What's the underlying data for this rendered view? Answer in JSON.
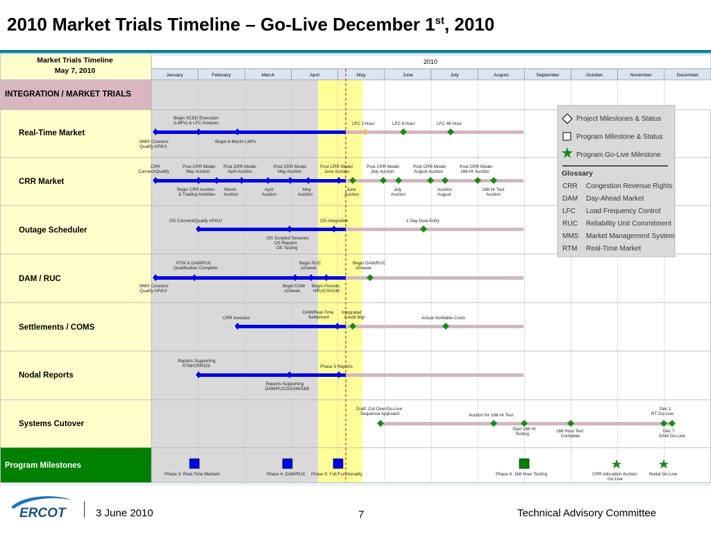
{
  "title": {
    "main": "2010 Market Trials Timeline – Go-Live December 1",
    "sup": "st",
    "tail": ", 2010"
  },
  "header": {
    "name_line1": "Market Trials Timeline",
    "name_line2": "May 7, 2010",
    "year": "2010"
  },
  "months": [
    "January",
    "February",
    "March",
    "April",
    "May",
    "June",
    "July",
    "August",
    "September",
    "October",
    "November",
    "December"
  ],
  "sections": {
    "integration": "INTEGRATION / MARKET TRIALS",
    "milestones": "Program Milestones"
  },
  "rows": [
    {
      "label": "Real-Time Market",
      "annotations": [
        "Begin SCED Execution",
        "(LMPs) & LFC Analysis",
        "MMS Connect/",
        "Qualify API/UI",
        "Begin 6-Month LMPs",
        "LFC 2 Hour",
        "LFC 8 Hour",
        "LFC 48 Hour"
      ]
    },
    {
      "label": "CRR Market",
      "annotations": [
        "CRR",
        "Connect/Qualify",
        "Post CRR Model",
        "May Auction",
        "Post CRR Model",
        "April Auction",
        "Post CRR Model",
        "May Auction",
        "Post CRR Model",
        "June Auction",
        "Post CRR Model",
        "July Auction",
        "Post CRR Model",
        "August Auction",
        "Post CRR Model",
        "168-Hr Auction",
        "Begin CRR Auction",
        "& Trading Activities",
        "March",
        "Auction",
        "April",
        "Auction",
        "May",
        "Auction",
        "June",
        "Auction",
        "July",
        "Auction",
        "Auction",
        "August",
        "168-Hr Test",
        "Auction"
      ]
    },
    {
      "label": "Outage Scheduler",
      "annotations": [
        "OS Connect/Qualify API/UI",
        "OS Integration",
        "1 Day Dual-Entry",
        "OS Scripted Senarios",
        "OS Reports",
        "OE Testing"
      ]
    },
    {
      "label": "DAM / RUC",
      "annotations": [
        "RTM & DAM/RUC",
        "Qualification Complete",
        "Begin RUC",
        "x2/week",
        "Begin DAM/RUC",
        "x5/week",
        "MMS Connect/",
        "Qualify API/UI",
        "Begin DAM",
        "x2/week",
        "Begin Periodic",
        "HRUC/SASM"
      ]
    },
    {
      "label": "Settlements / COMS",
      "annotations": [
        "CRR Invoices",
        "DAM/Real-Time",
        "Settlement",
        "Integrated",
        "Credit Mgt",
        "Actual Verifiable Costs"
      ]
    },
    {
      "label": "Nodal Reports",
      "annotations": [
        "Reports Supporting",
        "RTM/CRR/OS",
        "Phase 5 Reports",
        "Reports Supporting",
        "DAM/RUC/SASM/S&B"
      ]
    },
    {
      "label": "Systems Cutover",
      "annotations": [
        "Draft: Cut Over/Go-Live",
        "Sequence Approach",
        "Auction for 168-Hr Test",
        "Start 168 Hr",
        "Testing",
        "168 Hour Test",
        "Complete",
        "Dec 1",
        "RT Go-Live",
        "Dec 7",
        "DAM Go-Live"
      ]
    }
  ],
  "milestone_labels": [
    "Phase 3: Real-Time Markets",
    "Phase 4: DAM/RUC",
    "Phase 5: Full Functionality",
    "Phase 6: 168 Hour Testing",
    "CRR Allocation Auction",
    "Go-Live",
    "Nodal Go-Live"
  ],
  "legend": {
    "items": [
      "Project Milestones & Status",
      "Program Milestone & Status",
      "Program Go-Live Milestone"
    ],
    "glossary_title": "Glossary",
    "glossary": [
      {
        "abbr": "CRR",
        "text": "Congestion Revenue Rights"
      },
      {
        "abbr": "DAM",
        "text": "Day-Ahead Market"
      },
      {
        "abbr": "LFC",
        "text": "Load Frequency Control"
      },
      {
        "abbr": "RUC",
        "text": "Reliability Unit Commitment"
      },
      {
        "abbr": "MMS",
        "text": "Market Management System"
      },
      {
        "abbr": "RTM",
        "text": "Real-Time Market"
      }
    ]
  },
  "footer": {
    "logo_text": "ERCOT",
    "date": "3 June 2010",
    "page": "7",
    "org": "Technical Advisory Committee"
  },
  "colors": {
    "blue": "#0000e6",
    "green": "#1a8a1a",
    "rose": "#d1b7bf",
    "yellow": "#ffff99",
    "gray": "#d9d9d9",
    "cream": "#ffffcc",
    "header_blue": "#dbe5f1",
    "milestone_green": "#008000",
    "teal": "#0f7c93"
  }
}
